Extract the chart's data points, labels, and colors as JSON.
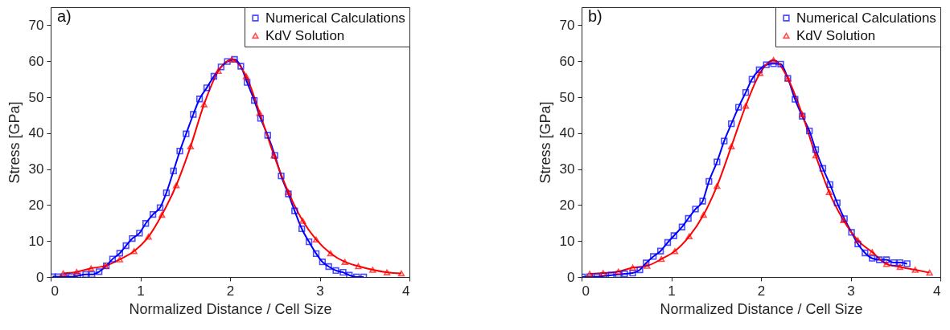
{
  "chart_data": [
    {
      "type": "line",
      "annotations": [
        "a)"
      ],
      "xlabel": "Normalized Distance / Cell Size",
      "ylabel": "Stress [GPa]",
      "xlim": [
        0,
        4
      ],
      "xticks": [
        0,
        1,
        2,
        3,
        4
      ],
      "ylim": [
        0,
        75
      ],
      "yticks": [
        0,
        10,
        20,
        30,
        40,
        50,
        60,
        70
      ],
      "grid": false,
      "legend": "top right",
      "line_style": "solid",
      "series": [
        {
          "name": "Numerical Calculations",
          "color": "#0000ff",
          "marker": "square",
          "x": [
            0.02,
            0.08,
            0.15,
            0.23,
            0.3,
            0.39,
            0.46,
            0.54,
            0.62,
            0.69,
            0.77,
            0.84,
            0.91,
            0.99,
            1.06,
            1.14,
            1.22,
            1.29,
            1.37,
            1.44,
            1.51,
            1.59,
            1.66,
            1.74,
            1.82,
            1.9,
            1.97,
            2.05,
            2.12,
            2.19,
            2.27,
            2.34,
            2.42,
            2.5,
            2.57,
            2.65,
            2.72,
            2.8,
            2.88,
            2.96,
            3.03,
            3.1,
            3.18,
            3.26,
            3.33,
            3.41,
            3.49
          ],
          "values": [
            0.1,
            0.1,
            0.1,
            0.1,
            0.3,
            0.7,
            0.7,
            1.5,
            3.1,
            5,
            6.6,
            8.7,
            10.7,
            12.2,
            14.9,
            17.4,
            19.3,
            23.4,
            29.5,
            35,
            39.8,
            45.2,
            49.5,
            52.6,
            55.8,
            58.4,
            59.9,
            60.5,
            58.6,
            54.1,
            49.1,
            44.1,
            39.4,
            33.8,
            28.1,
            23.1,
            18.4,
            13.4,
            9.8,
            6.5,
            4.2,
            2.9,
            1.8,
            1.3,
            0.5,
            0,
            0
          ]
        },
        {
          "name": "KdV Solution",
          "color": "#ff0000",
          "marker": "triangle",
          "x": [
            0.14,
            0.29,
            0.45,
            0.61,
            0.77,
            0.93,
            1.09,
            1.24,
            1.4,
            1.56,
            1.71,
            1.87,
            2.02,
            2.18,
            2.33,
            2.49,
            2.65,
            2.81,
            2.96,
            3.12,
            3.28,
            3.43,
            3.59,
            3.75,
            3.91
          ],
          "values": [
            1,
            1.4,
            2.4,
            3.1,
            4.9,
            7.2,
            11.2,
            17.3,
            25.5,
            36.3,
            48,
            57.3,
            60.5,
            55.8,
            45.6,
            33.8,
            23.6,
            15.6,
            10.4,
            6.6,
            4.2,
            3,
            2,
            1.3,
            1
          ]
        }
      ]
    },
    {
      "type": "line",
      "annotations": [
        "b)"
      ],
      "xlabel": "Normalized Distance / Cell Size",
      "ylabel": "Stress [GPa]",
      "xlim": [
        0,
        4
      ],
      "xticks": [
        0,
        1,
        2,
        3,
        4
      ],
      "ylim": [
        0,
        75
      ],
      "yticks": [
        0,
        10,
        20,
        30,
        40,
        50,
        60,
        70
      ],
      "grid": false,
      "legend": "top right",
      "line_style": "solid",
      "series": [
        {
          "name": "Numerical Calculations",
          "color": "#0000ff",
          "marker": "square",
          "x": [
            0.01,
            0.09,
            0.17,
            0.25,
            0.33,
            0.41,
            0.48,
            0.57,
            0.65,
            0.72,
            0.8,
            0.88,
            0.96,
            1.03,
            1.12,
            1.19,
            1.27,
            1.35,
            1.42,
            1.51,
            1.59,
            1.67,
            1.75,
            1.83,
            1.9,
            1.98,
            2.06,
            2.14,
            2.22,
            2.3,
            2.38,
            2.46,
            2.54,
            2.61,
            2.69,
            2.77,
            2.85,
            2.93,
            3.01,
            3.08,
            3.16,
            3.24,
            3.32,
            3.4,
            3.48,
            3.55,
            3.63
          ],
          "values": [
            0,
            0.1,
            0.1,
            0.3,
            0.5,
            0.7,
            0.9,
            1.1,
            2,
            3.9,
            5.7,
            7.2,
            9.6,
            11.5,
            13.9,
            16.3,
            18.9,
            21.1,
            26.6,
            32,
            37.8,
            42.6,
            47.2,
            51.3,
            55,
            57.6,
            59,
            59.3,
            59.2,
            55.2,
            49.4,
            44.7,
            40.6,
            35.4,
            30.2,
            25.7,
            20.6,
            16.2,
            12.4,
            9.2,
            6.7,
            5.2,
            4.8,
            4.8,
            4,
            4,
            3.7
          ]
        },
        {
          "name": "KdV Solution",
          "color": "#ff0000",
          "marker": "triangle",
          "x": [
            0.09,
            0.24,
            0.41,
            0.57,
            0.73,
            0.89,
            1.04,
            1.2,
            1.36,
            1.51,
            1.67,
            1.83,
            1.99,
            2.14,
            2.3,
            2.46,
            2.61,
            2.76,
            2.92,
            3.08,
            3.24,
            3.4,
            3.55,
            3.72,
            3.88
          ],
          "values": [
            0.9,
            1.1,
            1.5,
            2.6,
            3.1,
            5,
            7.2,
            11.3,
            17.3,
            25.3,
            36.3,
            47.6,
            56.7,
            60.3,
            55.2,
            45.2,
            33.8,
            23.6,
            15.8,
            10.2,
            6.9,
            3.6,
            2.8,
            2,
            1.2
          ]
        }
      ]
    }
  ]
}
